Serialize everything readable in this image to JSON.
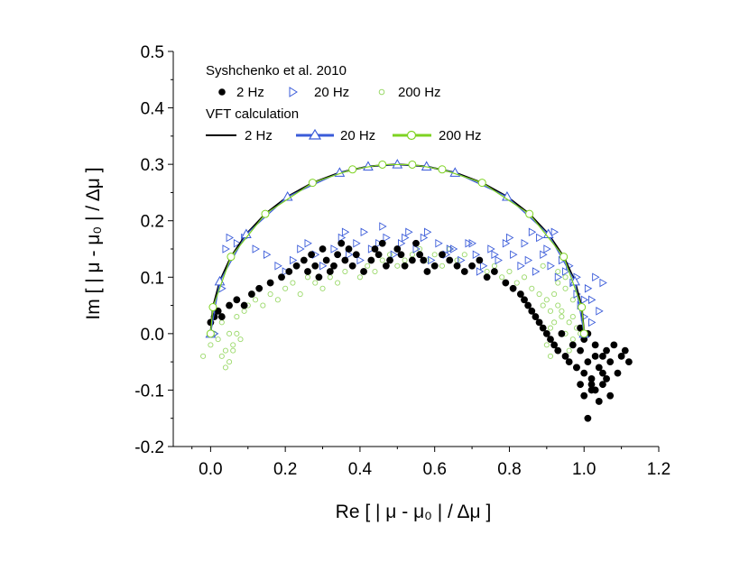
{
  "chart_data": {
    "type": "scatter",
    "xlabel": "Re [ | μ - μ₀ | / Δμ ]",
    "ylabel": "Im [ | μ - μ₀ | / Δμ ]",
    "xlim": [
      -0.1,
      1.2
    ],
    "ylim": [
      -0.2,
      0.5
    ],
    "x_ticks": [
      "0.0",
      "0.2",
      "0.4",
      "0.6",
      "0.8",
      "1.0",
      "1.2"
    ],
    "y_ticks": [
      "-0.2",
      "-0.1",
      "0.0",
      "0.1",
      "0.2",
      "0.3",
      "0.4",
      "0.5"
    ],
    "x_tick_values": [
      0,
      0.2,
      0.4,
      0.6,
      0.8,
      1.0,
      1.2
    ],
    "y_tick_values": [
      -0.2,
      -0.1,
      0,
      0.1,
      0.2,
      0.3,
      0.4,
      0.5
    ],
    "legend": {
      "group1_title": "Syshchenko et al. 2010",
      "group1_entries": [
        "2 Hz",
        "20 Hz",
        "200 Hz"
      ],
      "group2_title": "VFT calculation",
      "group2_entries": [
        "2 Hz",
        "20 Hz",
        "200 Hz"
      ]
    },
    "colors": {
      "hz2": "#000000",
      "hz20": "#3a5bd9",
      "hz200": "#7ed321",
      "hz200_marker": "#9bd96a"
    },
    "series": [
      {
        "name": "VFT calculation 2 Hz",
        "kind": "line",
        "x": [
          0.0,
          0.0062,
          0.0245,
          0.0545,
          0.0955,
          0.1464,
          0.2061,
          0.273,
          0.3455,
          0.4218,
          0.5,
          0.5782,
          0.6545,
          0.727,
          0.7939,
          0.8536,
          0.9045,
          0.9455,
          0.9755,
          0.9938,
          1.0
        ],
        "y": [
          0.0,
          0.0469,
          0.0927,
          0.1362,
          0.1763,
          0.2121,
          0.2427,
          0.2673,
          0.2853,
          0.2963,
          0.3,
          0.2963,
          0.2853,
          0.2673,
          0.2427,
          0.2121,
          0.1763,
          0.1362,
          0.0927,
          0.0469,
          0.0
        ]
      },
      {
        "name": "VFT calculation 20 Hz",
        "kind": "line-marker",
        "x": [
          0.0,
          0.0245,
          0.0955,
          0.2061,
          0.3455,
          0.4218,
          0.5,
          0.5782,
          0.6545,
          0.7939,
          0.9045,
          0.9755,
          1.0
        ],
        "y": [
          0.0,
          0.0927,
          0.1763,
          0.2427,
          0.2853,
          0.2963,
          0.3,
          0.2963,
          0.2853,
          0.2427,
          0.1763,
          0.0927,
          0.0
        ]
      },
      {
        "name": "VFT calculation 200 Hz",
        "kind": "line-marker",
        "x": [
          0.0,
          0.0062,
          0.0545,
          0.1464,
          0.273,
          0.38,
          0.46,
          0.54,
          0.62,
          0.727,
          0.8536,
          0.9455,
          0.9938,
          1.0
        ],
        "y": [
          0.0,
          0.0469,
          0.1362,
          0.2121,
          0.2673,
          0.291,
          0.2995,
          0.2995,
          0.291,
          0.2673,
          0.2121,
          0.1362,
          0.0469,
          0.0
        ]
      },
      {
        "name": "Syshchenko 2 Hz",
        "kind": "scatter",
        "x": [
          0.0,
          0.01,
          0.02,
          0.03,
          0.05,
          0.07,
          0.09,
          0.11,
          0.13,
          0.16,
          0.19,
          0.21,
          0.23,
          0.25,
          0.26,
          0.27,
          0.28,
          0.29,
          0.3,
          0.31,
          0.32,
          0.33,
          0.34,
          0.35,
          0.36,
          0.37,
          0.38,
          0.39,
          0.41,
          0.43,
          0.44,
          0.45,
          0.46,
          0.47,
          0.48,
          0.5,
          0.51,
          0.52,
          0.54,
          0.55,
          0.56,
          0.57,
          0.58,
          0.6,
          0.62,
          0.64,
          0.66,
          0.68,
          0.7,
          0.72,
          0.74,
          0.76,
          0.79,
          0.81,
          0.83,
          0.84,
          0.85,
          0.86,
          0.87,
          0.88,
          0.89,
          0.9,
          0.91,
          0.92,
          0.93,
          0.94,
          0.95,
          0.96,
          0.97,
          0.98,
          0.99,
          1.0,
          1.01,
          1.02,
          1.03,
          1.04,
          1.05,
          1.06,
          1.07,
          1.08,
          1.09,
          1.1,
          1.12,
          0.99,
          1.0,
          1.02,
          1.04,
          1.06,
          0.98,
          1.01,
          1.03,
          1.05,
          1.07,
          1.11,
          1.0,
          1.01,
          0.99,
          1.03,
          1.05,
          1.02
        ],
        "y": [
          0.02,
          0.03,
          0.04,
          0.03,
          0.05,
          0.06,
          0.05,
          0.07,
          0.08,
          0.09,
          0.1,
          0.11,
          0.12,
          0.13,
          0.11,
          0.14,
          0.12,
          0.1,
          0.15,
          0.13,
          0.11,
          0.12,
          0.14,
          0.16,
          0.13,
          0.15,
          0.12,
          0.14,
          0.11,
          0.13,
          0.15,
          0.14,
          0.16,
          0.12,
          0.13,
          0.15,
          0.14,
          0.12,
          0.13,
          0.16,
          0.14,
          0.13,
          0.11,
          0.12,
          0.14,
          0.13,
          0.12,
          0.11,
          0.12,
          0.13,
          0.1,
          0.11,
          0.09,
          0.08,
          0.07,
          0.06,
          0.05,
          0.04,
          0.03,
          0.02,
          0.01,
          0.0,
          -0.01,
          -0.02,
          -0.03,
          0.0,
          -0.04,
          -0.05,
          -0.02,
          -0.06,
          -0.03,
          -0.07,
          -0.05,
          -0.08,
          -0.04,
          -0.06,
          -0.09,
          -0.03,
          -0.05,
          -0.02,
          -0.07,
          -0.04,
          -0.05,
          -0.09,
          -0.11,
          -0.1,
          -0.12,
          -0.08,
          -0.06,
          -0.15,
          -0.1,
          -0.07,
          -0.11,
          -0.03,
          -0.01,
          0.0,
          0.01,
          -0.02,
          -0.04,
          -0.09
        ]
      },
      {
        "name": "Syshchenko 20 Hz",
        "kind": "scatter",
        "x": [
          0.01,
          0.03,
          0.04,
          0.05,
          0.07,
          0.09,
          0.12,
          0.15,
          0.18,
          0.2,
          0.22,
          0.24,
          0.26,
          0.28,
          0.3,
          0.33,
          0.35,
          0.37,
          0.39,
          0.41,
          0.43,
          0.45,
          0.47,
          0.49,
          0.51,
          0.53,
          0.55,
          0.57,
          0.59,
          0.61,
          0.63,
          0.65,
          0.67,
          0.69,
          0.71,
          0.73,
          0.75,
          0.77,
          0.79,
          0.81,
          0.83,
          0.85,
          0.87,
          0.89,
          0.91,
          0.93,
          0.95,
          0.97,
          0.98,
          0.99,
          1.0,
          1.01,
          1.02,
          1.03,
          1.04,
          1.05,
          0.88,
          0.9,
          0.92,
          0.94,
          0.96,
          0.98,
          1.0,
          1.02,
          0.86,
          0.84,
          0.8,
          0.76,
          0.72,
          0.4,
          0.36,
          0.46,
          0.52,
          0.58,
          0.64,
          0.7
        ],
        "y": [
          0.0,
          0.08,
          0.15,
          0.17,
          0.16,
          0.17,
          0.15,
          0.14,
          0.12,
          0.11,
          0.13,
          0.15,
          0.16,
          0.14,
          0.12,
          0.15,
          0.17,
          0.14,
          0.16,
          0.18,
          0.15,
          0.16,
          0.17,
          0.14,
          0.16,
          0.18,
          0.15,
          0.17,
          0.13,
          0.16,
          0.14,
          0.15,
          0.13,
          0.16,
          0.14,
          0.12,
          0.15,
          0.13,
          0.16,
          0.14,
          0.12,
          0.13,
          0.11,
          0.14,
          0.12,
          0.1,
          0.11,
          0.09,
          0.07,
          0.05,
          0.03,
          0.08,
          0.06,
          0.1,
          0.04,
          0.09,
          0.17,
          0.15,
          0.18,
          0.13,
          0.12,
          0.1,
          0.06,
          0.02,
          0.18,
          0.16,
          0.17,
          0.14,
          0.11,
          0.13,
          0.18,
          0.19,
          0.17,
          0.18,
          0.15,
          0.16
        ]
      },
      {
        "name": "Syshchenko 200 Hz",
        "kind": "scatter",
        "x": [
          -0.02,
          0.0,
          0.01,
          0.02,
          0.03,
          0.04,
          0.05,
          0.06,
          0.07,
          0.08,
          0.09,
          0.1,
          0.12,
          0.14,
          0.16,
          0.18,
          0.2,
          0.22,
          0.24,
          0.26,
          0.28,
          0.3,
          0.32,
          0.34,
          0.36,
          0.38,
          0.4,
          0.42,
          0.44,
          0.46,
          0.48,
          0.5,
          0.52,
          0.54,
          0.56,
          0.58,
          0.6,
          0.62,
          0.64,
          0.66,
          0.68,
          0.7,
          0.72,
          0.74,
          0.76,
          0.78,
          0.8,
          0.82,
          0.84,
          0.86,
          0.88,
          0.89,
          0.9,
          0.91,
          0.92,
          0.93,
          0.94,
          0.95,
          0.96,
          0.97,
          0.98,
          0.99,
          0.9,
          0.91,
          0.92,
          0.93,
          0.94,
          0.95,
          0.96,
          0.97,
          0.89,
          0.93,
          0.95,
          0.91,
          0.97,
          0.04,
          0.05,
          0.06,
          0.03,
          0.07
        ],
        "y": [
          -0.04,
          -0.02,
          0.0,
          -0.01,
          0.02,
          -0.03,
          0.0,
          -0.02,
          0.03,
          -0.01,
          0.04,
          0.05,
          0.06,
          0.05,
          0.07,
          0.06,
          0.08,
          0.09,
          0.07,
          0.1,
          0.09,
          0.08,
          0.1,
          0.09,
          0.11,
          0.12,
          0.1,
          0.12,
          0.11,
          0.13,
          0.14,
          0.12,
          0.13,
          0.14,
          0.15,
          0.13,
          0.14,
          0.12,
          0.15,
          0.13,
          0.14,
          0.12,
          0.13,
          0.11,
          0.12,
          0.1,
          0.11,
          0.09,
          0.1,
          0.08,
          0.07,
          0.05,
          0.06,
          0.04,
          0.02,
          0.05,
          0.03,
          0.0,
          0.02,
          -0.01,
          0.01,
          0.0,
          -0.02,
          -0.04,
          0.07,
          0.09,
          0.04,
          0.08,
          -0.03,
          0.06,
          0.12,
          0.11,
          0.1,
          0.01,
          0.03,
          -0.06,
          -0.05,
          -0.03,
          -0.04,
          0.0
        ]
      }
    ]
  }
}
